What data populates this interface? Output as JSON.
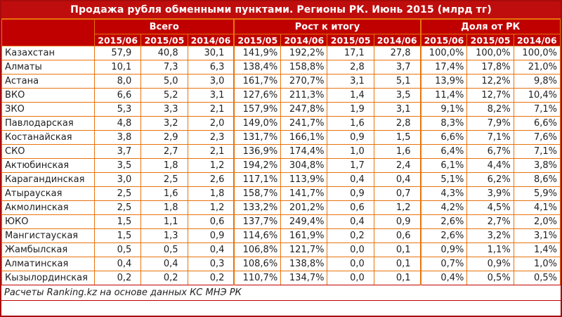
{
  "title": "Продажа рубля обменными пунктами. Регионы РК. Июнь 2015 (млрд тг)",
  "footer_note": "Расчеты Ranking.kz на основе данных КС МНЭ РК",
  "colors": {
    "title_bg": "#BF0D0D",
    "header_bg": "#C00000",
    "grid_orange": "#E8730D",
    "outer_frame": "#A80A0A",
    "text": "#1F1F1F",
    "red_line": "#C00000"
  },
  "chart_data": {
    "type": "table",
    "title": "Продажа рубля обменными пунктами. Регионы РК. Июнь 2015 (млрд тг)",
    "source": "Расчеты Ranking.kz на основе данных КС МНЭ РК",
    "column_groups": [
      {
        "label": "Всего",
        "span": 3
      },
      {
        "label": "Рост к итогу",
        "span": 4
      },
      {
        "label": "Доля от РК",
        "span": 3
      }
    ],
    "sub_headers": [
      "2015/06",
      "2015/05",
      "2014/06",
      "2015/05",
      "2014/06",
      "2015/05",
      "2014/06",
      "2015/06",
      "2015/05",
      "2014/06"
    ],
    "rows": [
      [
        "Казахстан",
        "57,9",
        "40,8",
        "30,1",
        "141,9%",
        "192,2%",
        "17,1",
        "27,8",
        "100,0%",
        "100,0%",
        "100,0%"
      ],
      [
        "Алматы",
        "10,1",
        "7,3",
        "6,3",
        "138,4%",
        "158,8%",
        "2,8",
        "3,7",
        "17,4%",
        "17,8%",
        "21,0%"
      ],
      [
        "Астана",
        "8,0",
        "5,0",
        "3,0",
        "161,7%",
        "270,7%",
        "3,1",
        "5,1",
        "13,9%",
        "12,2%",
        "9,8%"
      ],
      [
        "ВКО",
        "6,6",
        "5,2",
        "3,1",
        "127,6%",
        "211,3%",
        "1,4",
        "3,5",
        "11,4%",
        "12,7%",
        "10,4%"
      ],
      [
        "ЗКО",
        "5,3",
        "3,3",
        "2,1",
        "157,9%",
        "247,8%",
        "1,9",
        "3,1",
        "9,1%",
        "8,2%",
        "7,1%"
      ],
      [
        "Павлодарская",
        "4,8",
        "3,2",
        "2,0",
        "149,0%",
        "241,7%",
        "1,6",
        "2,8",
        "8,3%",
        "7,9%",
        "6,6%"
      ],
      [
        "Костанайская",
        "3,8",
        "2,9",
        "2,3",
        "131,7%",
        "166,1%",
        "0,9",
        "1,5",
        "6,6%",
        "7,1%",
        "7,6%"
      ],
      [
        "СКО",
        "3,7",
        "2,7",
        "2,1",
        "136,9%",
        "174,4%",
        "1,0",
        "1,6",
        "6,4%",
        "6,7%",
        "7,1%"
      ],
      [
        "Актюбинская",
        "3,5",
        "1,8",
        "1,2",
        "194,2%",
        "304,8%",
        "1,7",
        "2,4",
        "6,1%",
        "4,4%",
        "3,8%"
      ],
      [
        "Карагандинская",
        "3,0",
        "2,5",
        "2,6",
        "117,1%",
        "113,9%",
        "0,4",
        "0,4",
        "5,1%",
        "6,2%",
        "8,6%"
      ],
      [
        "Атырауская",
        "2,5",
        "1,6",
        "1,8",
        "158,7%",
        "141,7%",
        "0,9",
        "0,7",
        "4,3%",
        "3,9%",
        "5,9%"
      ],
      [
        "Акмолинская",
        "2,5",
        "1,8",
        "1,2",
        "133,2%",
        "201,2%",
        "0,6",
        "1,2",
        "4,2%",
        "4,5%",
        "4,1%"
      ],
      [
        "ЮКО",
        "1,5",
        "1,1",
        "0,6",
        "137,7%",
        "249,4%",
        "0,4",
        "0,9",
        "2,6%",
        "2,7%",
        "2,0%"
      ],
      [
        "Мангистауская",
        "1,5",
        "1,3",
        "0,9",
        "114,6%",
        "161,9%",
        "0,2",
        "0,6",
        "2,6%",
        "3,2%",
        "3,1%"
      ],
      [
        "Жамбылская",
        "0,5",
        "0,5",
        "0,4",
        "106,8%",
        "121,7%",
        "0,0",
        "0,1",
        "0,9%",
        "1,1%",
        "1,4%"
      ],
      [
        "Алматинская",
        "0,4",
        "0,4",
        "0,3",
        "108,6%",
        "138,8%",
        "0,0",
        "0,1",
        "0,7%",
        "0,9%",
        "1,0%"
      ],
      [
        "Кызылординская",
        "0,2",
        "0,2",
        "0,2",
        "110,7%",
        "134,7%",
        "0,0",
        "0,1",
        "0,4%",
        "0,5%",
        "0,5%"
      ]
    ]
  }
}
